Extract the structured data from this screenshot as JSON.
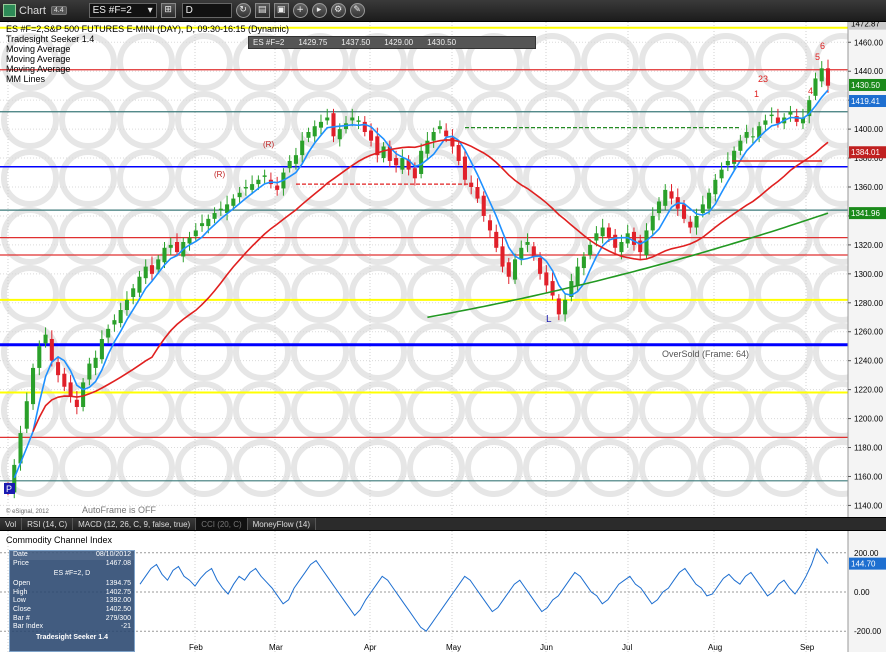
{
  "toolbar": {
    "app_title": "Chart",
    "badge": "4.4",
    "symbol_value": "ES #F=2",
    "interval_value": "D"
  },
  "main_pane": {
    "title_line": "ES #F=2,S&P 500 FUTURES E-MINI (DAY), D, 09:30-16:15 (Dynamic)",
    "study_labels": [
      "Tradesight Seeker 1.4",
      "Moving Average",
      "Moving Average",
      "Moving Average",
      "MM Lines"
    ],
    "quote_strip": {
      "symbol": "ES #F=2",
      "values": [
        "1429.75",
        "1437.50",
        "1429.00",
        "1430.50"
      ]
    },
    "oversold_label": "OverSold (Frame: 64)",
    "autoframe": "AutoFrame is OFF",
    "copyright": "© eSignal, 2012",
    "low_marker": "L",
    "p_marker": "P",
    "r_markers": [
      "(R)",
      "(R)"
    ]
  },
  "tabs": [
    {
      "label": "Vol"
    },
    {
      "label": "RSI (14, C)"
    },
    {
      "label": "MACD (12, 26, C, 9, false, true)"
    },
    {
      "label": "CCI (20, C)"
    },
    {
      "label": "MoneyFlow (14)"
    }
  ],
  "cci_pane": {
    "title": "Commodity Channel Index",
    "current_value": "144.70",
    "ticks": [
      "200.00",
      "0.00",
      "-200.00"
    ]
  },
  "data_window": {
    "date_label": "Date",
    "date_value": "08/10/2012",
    "price_label": "Price",
    "price_value": "1467.08",
    "symbol": "ES #F=2, D",
    "rows": [
      {
        "label": "Open",
        "value": "1394.75"
      },
      {
        "label": "High",
        "value": "1402.75"
      },
      {
        "label": "Low",
        "value": "1392.00"
      },
      {
        "label": "Close",
        "value": "1402.50"
      },
      {
        "label": "Bar #",
        "value": "279/300"
      },
      {
        "label": "Bar Index",
        "value": "-21"
      }
    ],
    "footer": "Tradesight Seeker 1.4"
  },
  "colors": {
    "up": "#2aa02a",
    "down": "#e0202a",
    "ma_blue": "#1e90ff",
    "ma_red": "#e02020",
    "ma_green": "#229922",
    "mm_blue": "#0000ff",
    "mm_red": "#e03030",
    "mm_yellow": "#ffff00",
    "mm_teal": "#3c7a7a"
  },
  "chart_data": {
    "type": "candlestick",
    "title": "ES #F=2,S&P 500 FUTURES E-MINI (DAY), D, 09:30-16:15 (Dynamic)",
    "x_labels": [
      "Feb",
      "Mar",
      "Apr",
      "May",
      "Jun",
      "Jul",
      "Aug",
      "Sep"
    ],
    "y_ticks": [
      1140,
      1160,
      1180,
      1200,
      1220,
      1240,
      1260,
      1280,
      1300,
      1320,
      1340,
      1360,
      1380,
      1400,
      1420,
      1440,
      1460
    ],
    "ylim": [
      1132,
      1474
    ],
    "price_labels": [
      {
        "value": 1472.87,
        "text": "1472.87",
        "color": "#cccccc"
      },
      {
        "value": 1430.5,
        "text": "1430.50",
        "color": "#1a8a1a"
      },
      {
        "value": 1419.41,
        "text": "1419.41",
        "color": "#1e6fd0"
      },
      {
        "value": 1384.01,
        "text": "1384.01",
        "color": "#c02020"
      },
      {
        "value": 1341.96,
        "text": "1341.96",
        "color": "#1a8a1a"
      }
    ],
    "mm_lines": [
      {
        "value": 1470.0,
        "color": "#ffff00",
        "width": 2
      },
      {
        "value": 1441.0,
        "color": "#e03030",
        "width": 1.2
      },
      {
        "value": 1412.0,
        "color": "#3c7a7a",
        "width": 1.2
      },
      {
        "value": 1374.0,
        "color": "#0000ff",
        "width": 1.5
      },
      {
        "value": 1344.0,
        "color": "#3c7a7a",
        "width": 1.2
      },
      {
        "value": 1325.0,
        "color": "#e03030",
        "width": 1.2
      },
      {
        "value": 1313.0,
        "color": "#e03030",
        "width": 1.2
      },
      {
        "value": 1282.0,
        "color": "#ffff00",
        "width": 2
      },
      {
        "value": 1251.0,
        "color": "#0000ff",
        "width": 3
      },
      {
        "value": 1218.0,
        "color": "#ffff00",
        "width": 2
      },
      {
        "value": 1187.0,
        "color": "#e03030",
        "width": 1.2
      },
      {
        "value": 1157.0,
        "color": "#3c7a7a",
        "width": 1.2
      }
    ],
    "closes": [
      1150,
      1168,
      1190,
      1212,
      1235,
      1250,
      1258,
      1240,
      1230,
      1222,
      1215,
      1208,
      1225,
      1238,
      1242,
      1255,
      1262,
      1268,
      1275,
      1282,
      1290,
      1298,
      1305,
      1300,
      1310,
      1318,
      1320,
      1315,
      1322,
      1325,
      1330,
      1335,
      1338,
      1342,
      1345,
      1348,
      1352,
      1356,
      1360,
      1362,
      1365,
      1368,
      1362,
      1358,
      1370,
      1378,
      1382,
      1392,
      1398,
      1402,
      1405,
      1408,
      1395,
      1400,
      1404,
      1408,
      1406,
      1398,
      1392,
      1382,
      1388,
      1378,
      1375,
      1380,
      1372,
      1366,
      1385,
      1392,
      1398,
      1402,
      1395,
      1388,
      1378,
      1365,
      1360,
      1352,
      1340,
      1330,
      1318,
      1305,
      1298,
      1310,
      1318,
      1322,
      1312,
      1300,
      1292,
      1285,
      1272,
      1282,
      1295,
      1305,
      1312,
      1320,
      1328,
      1332,
      1325,
      1318,
      1322,
      1328,
      1320,
      1315,
      1330,
      1340,
      1350,
      1358,
      1352,
      1345,
      1338,
      1332,
      1340,
      1348,
      1356,
      1365,
      1372,
      1378,
      1385,
      1392,
      1398,
      1395,
      1402,
      1406,
      1410,
      1404,
      1408,
      1412,
      1405,
      1408,
      1420,
      1435,
      1442,
      1430
    ],
    "moving_averages": [
      {
        "name": "",
        "color": "#1e90ff",
        "closes_window": 10
      },
      {
        "name": "",
        "color": "#e02020",
        "closes_window": 50
      },
      {
        "name": "",
        "color": "#229922",
        "values_hint": "200-period"
      }
    ],
    "cci_values": [
      40,
      80,
      120,
      140,
      90,
      60,
      110,
      130,
      80,
      60,
      30,
      70,
      100,
      120,
      60,
      20,
      -10,
      40,
      80,
      60,
      100,
      120,
      80,
      50,
      20,
      -20,
      -60,
      -40,
      20,
      60,
      100,
      140,
      160,
      120,
      80,
      40,
      0,
      -40,
      -80,
      -120,
      -90,
      -40,
      0,
      40,
      80,
      60,
      20,
      -20,
      -60,
      -100,
      -140,
      -180,
      -200,
      -160,
      -120,
      -80,
      -40,
      0,
      40,
      80,
      60,
      20,
      -20,
      -60,
      -100,
      -80,
      -40,
      0,
      40,
      60,
      20,
      -20,
      -60,
      -100,
      -80,
      -40,
      -20,
      20,
      60,
      100,
      80,
      40,
      0,
      -20,
      -60,
      -40,
      0,
      40,
      60,
      80,
      40,
      20,
      -20,
      -60,
      -40,
      0,
      20,
      60,
      100,
      120,
      80,
      40,
      20,
      -20,
      -10,
      30,
      70,
      90,
      60,
      40,
      80,
      100,
      60,
      20,
      -20,
      0,
      40,
      60,
      20,
      -10,
      30,
      80,
      140,
      220,
      180,
      144.7
    ],
    "annotations": [
      "L",
      "P",
      "(R)",
      "6",
      "5",
      "4",
      "23",
      "1"
    ]
  }
}
